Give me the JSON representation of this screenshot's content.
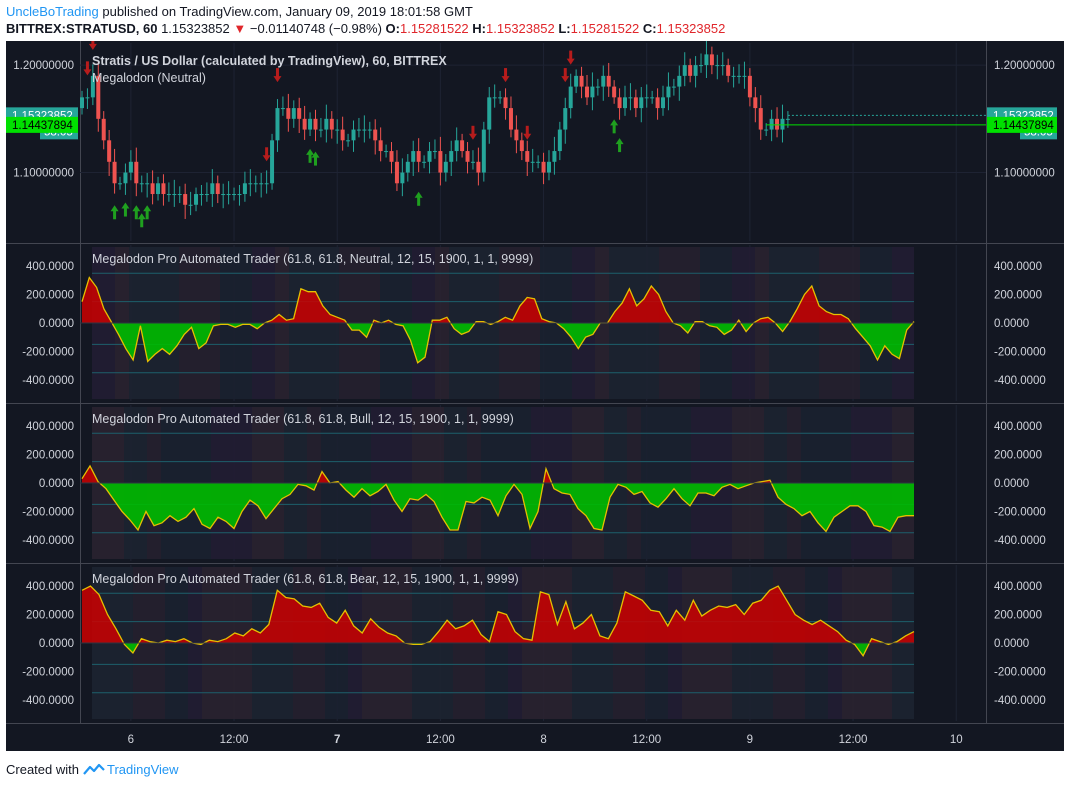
{
  "header": {
    "author": "UncleBoTrading",
    "published_text": "published on TradingView.com, January 09, 2019 18:01:58 GMT",
    "symbol": "BITTREX:STRATUSD, 60",
    "price": "1.15323852",
    "change": "−0.01140748 (−0.98%)",
    "ohlc": [
      {
        "label": "O:",
        "value": "1.15281522"
      },
      {
        "label": "H:",
        "value": "1.15323852"
      },
      {
        "label": "L:",
        "value": "1.15281522"
      },
      {
        "label": "C:",
        "value": "1.15323852"
      }
    ]
  },
  "footer": {
    "created_with": "Created with",
    "brand": "TradingView"
  },
  "colors": {
    "background": "#131722",
    "up": "#26a69a",
    "down": "#ef5350",
    "fill_positive": "#cc0000",
    "fill_negative": "#00bb00",
    "osc_line": "#e6c000",
    "buy_arrow": "#1fa01f",
    "sell_arrow": "#b71c1c",
    "price_label": "#26a69a",
    "ma_label": "#00e000"
  },
  "chart_data": [
    {
      "type": "candlestick",
      "title": "Stratis / US Dollar (calculated by TradingView), 60, BITTREX",
      "indicator": "Megalodon (Neutral)",
      "ylim": [
        1.04,
        1.215
      ],
      "ticks": [
        1.1,
        1.2
      ],
      "tick_labels": [
        "1.10000000",
        "1.20000000"
      ],
      "price_labels": {
        "last": {
          "value": 1.15323852,
          "text": "1.15323852",
          "countdown": "58:05"
        },
        "ma": {
          "value": 1.14437894,
          "text": "1.14437894"
        }
      },
      "close": [
        1.17,
        1.17,
        1.19,
        1.15,
        1.13,
        1.11,
        1.09,
        1.09,
        1.1,
        1.11,
        1.09,
        1.09,
        1.09,
        1.08,
        1.09,
        1.08,
        1.08,
        1.08,
        1.08,
        1.07,
        1.07,
        1.08,
        1.08,
        1.08,
        1.09,
        1.08,
        1.08,
        1.08,
        1.08,
        1.08,
        1.09,
        1.09,
        1.09,
        1.09,
        1.09,
        1.13,
        1.16,
        1.16,
        1.15,
        1.16,
        1.15,
        1.14,
        1.15,
        1.14,
        1.14,
        1.15,
        1.14,
        1.14,
        1.13,
        1.13,
        1.14,
        1.14,
        1.14,
        1.14,
        1.13,
        1.12,
        1.12,
        1.11,
        1.09,
        1.1,
        1.11,
        1.12,
        1.11,
        1.11,
        1.12,
        1.12,
        1.1,
        1.11,
        1.12,
        1.13,
        1.12,
        1.11,
        1.11,
        1.1,
        1.14,
        1.17,
        1.17,
        1.17,
        1.16,
        1.14,
        1.13,
        1.12,
        1.11,
        1.11,
        1.11,
        1.1,
        1.11,
        1.12,
        1.14,
        1.16,
        1.18,
        1.19,
        1.18,
        1.17,
        1.18,
        1.18,
        1.19,
        1.18,
        1.17,
        1.16,
        1.17,
        1.17,
        1.16,
        1.17,
        1.17,
        1.17,
        1.16,
        1.17,
        1.18,
        1.18,
        1.19,
        1.2,
        1.19,
        1.2,
        1.2,
        1.21,
        1.2,
        1.2,
        1.2,
        1.19,
        1.19,
        1.19,
        1.19,
        1.17,
        1.16,
        1.14,
        1.14,
        1.15,
        1.14,
        1.15,
        1.15
      ],
      "events": {
        "buy": [
          6,
          8,
          10,
          11,
          12,
          42,
          43,
          62,
          98,
          99
        ],
        "sell": [
          1,
          2,
          34,
          36,
          72,
          78,
          82,
          89,
          90
        ]
      },
      "x_labels": [
        {
          "bar": 9,
          "text": "6"
        },
        {
          "bar": 28,
          "text": "12:00"
        },
        {
          "bar": 47,
          "text": "7"
        },
        {
          "bar": 66,
          "text": "12:00"
        },
        {
          "bar": 85,
          "text": "8"
        },
        {
          "bar": 104,
          "text": "12:00"
        },
        {
          "bar": 123,
          "text": "9"
        },
        {
          "bar": 142,
          "text": "12:00"
        },
        {
          "bar": 161,
          "text": "10"
        }
      ]
    },
    {
      "type": "area",
      "title": "Megalodon Pro Automated Trader (61.8, 61.8, Neutral, 12, 15, 1900, 1, 1, 9999)",
      "ylim": [
        -520,
        520
      ],
      "ticks": [
        400,
        200,
        0,
        -200,
        -400
      ],
      "tick_labels": [
        "400.0000",
        "200.0000",
        "0.0000",
        "-200.0000",
        "-400.0000"
      ],
      "values": [
        150,
        320,
        250,
        100,
        10,
        -80,
        -180,
        -260,
        -20,
        -270,
        -220,
        -180,
        -220,
        -160,
        -80,
        -30,
        -180,
        -140,
        -20,
        -10,
        -10,
        -30,
        -10,
        -10,
        -40,
        0,
        20,
        60,
        20,
        30,
        240,
        220,
        220,
        120,
        60,
        40,
        20,
        -50,
        -50,
        -100,
        20,
        0,
        20,
        -10,
        -20,
        -120,
        -280,
        -240,
        20,
        20,
        40,
        -40,
        -80,
        -60,
        10,
        10,
        -10,
        10,
        40,
        20,
        120,
        180,
        170,
        30,
        10,
        0,
        -40,
        -100,
        -180,
        -100,
        -80,
        0,
        0,
        80,
        140,
        240,
        120,
        170,
        260,
        200,
        80,
        0,
        -20,
        -70,
        10,
        10,
        -20,
        -30,
        -80,
        -50,
        20,
        -60,
        0,
        30,
        40,
        0,
        -60,
        10,
        100,
        200,
        260,
        120,
        80,
        60,
        60,
        30,
        -40,
        -100,
        -160,
        -260,
        -160,
        -220,
        -250,
        -50,
        10
      ]
    },
    {
      "type": "area",
      "title": "Megalodon Pro Automated Trader (61.8, 61.8, Bull, 12, 15, 1900, 1, 1, 9999)",
      "ylim": [
        -520,
        520
      ],
      "ticks": [
        400,
        200,
        0,
        -200,
        -400
      ],
      "tick_labels": [
        "400.0000",
        "200.0000",
        "0.0000",
        "-200.0000",
        "-400.0000"
      ],
      "values": [
        30,
        120,
        10,
        -40,
        -120,
        -200,
        -260,
        -330,
        -200,
        -300,
        -280,
        -230,
        -270,
        -240,
        -180,
        -290,
        -320,
        -240,
        -270,
        -320,
        -200,
        -120,
        -160,
        -250,
        -180,
        -110,
        -80,
        -10,
        -20,
        -50,
        80,
        0,
        10,
        -50,
        -100,
        -40,
        -90,
        -60,
        -10,
        -120,
        -200,
        -110,
        -120,
        -80,
        -130,
        -240,
        -330,
        -330,
        -130,
        -140,
        -100,
        -120,
        -230,
        -90,
        -10,
        -80,
        -320,
        -200,
        100,
        -40,
        -70,
        -80,
        -180,
        -230,
        -320,
        -330,
        -100,
        -10,
        -30,
        -80,
        -60,
        -140,
        -170,
        -110,
        -40,
        -110,
        -160,
        -70,
        -70,
        -90,
        -30,
        -10,
        -40,
        -20,
        0,
        10,
        20,
        -100,
        -150,
        -180,
        -230,
        -200,
        -280,
        -340,
        -240,
        -200,
        -160,
        -160,
        -200,
        -300,
        -310,
        -340,
        -240,
        -230,
        -230
      ]
    },
    {
      "type": "area",
      "title": "Megalodon Pro Automated Trader (61.8, 61.8, Bear, 12, 15, 1900, 1, 1, 9999)",
      "ylim": [
        -520,
        520
      ],
      "ticks": [
        400,
        200,
        0,
        -200,
        -400
      ],
      "tick_labels": [
        "400.0000",
        "200.0000",
        "0.0000",
        "-200.0000",
        "-400.0000"
      ],
      "values": [
        370,
        400,
        340,
        200,
        100,
        -10,
        -70,
        30,
        10,
        0,
        20,
        10,
        30,
        0,
        -10,
        20,
        10,
        30,
        70,
        50,
        100,
        70,
        130,
        370,
        320,
        310,
        260,
        250,
        280,
        180,
        140,
        230,
        120,
        70,
        170,
        110,
        70,
        50,
        0,
        -10,
        -10,
        10,
        80,
        160,
        100,
        120,
        160,
        60,
        10,
        220,
        200,
        80,
        30,
        20,
        360,
        340,
        130,
        290,
        100,
        140,
        200,
        50,
        30,
        140,
        360,
        330,
        300,
        230,
        220,
        120,
        230,
        160,
        300,
        190,
        230,
        260,
        250,
        270,
        200,
        280,
        300,
        370,
        400,
        300,
        200,
        160,
        130,
        160,
        120,
        80,
        20,
        -10,
        -90,
        30,
        10,
        -10,
        10,
        50,
        80
      ]
    }
  ]
}
